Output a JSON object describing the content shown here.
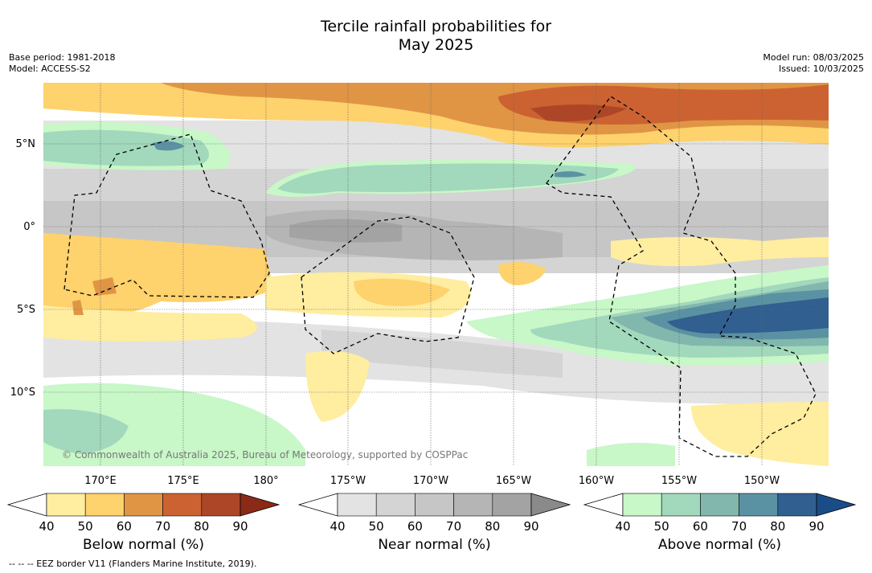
{
  "title": [
    "Tercile rainfall probabilities for",
    "May 2025"
  ],
  "meta_left": [
    "Base period: 1981-2018",
    "Model: ACCESS-S2"
  ],
  "meta_right": [
    "Model run: 08/03/2025",
    "Issued: 10/03/2025"
  ],
  "lat_labels": [
    "5°N",
    "0°",
    "5°S",
    "10°S"
  ],
  "lon_labels": [
    "170°E",
    "175°E",
    "180°",
    "175°W",
    "170°W",
    "165°W",
    "160°W",
    "155°W",
    "150°W"
  ],
  "copyright": "© Commonwealth of Australia 2025, Bureau of Meteorology, supported by COSPPac",
  "legends": [
    {
      "label": "Below normal (%)",
      "ticks": [
        "40",
        "50",
        "60",
        "70",
        "80",
        "90"
      ],
      "colors": [
        "#ffeda0",
        "#fed26c",
        "#e09545",
        "#cc6232",
        "#ad4627",
        "#8b2a17"
      ]
    },
    {
      "label": "Near normal (%)",
      "ticks": [
        "40",
        "50",
        "60",
        "70",
        "80",
        "90"
      ],
      "colors": [
        "#e3e3e3",
        "#d4d4d4",
        "#c6c6c6",
        "#b5b5b5",
        "#a3a3a3",
        "#8a8a8a"
      ]
    },
    {
      "label": "Above normal (%)",
      "ticks": [
        "40",
        "50",
        "60",
        "70",
        "80",
        "90"
      ],
      "colors": [
        "#c8f7c8",
        "#a2d8bc",
        "#82b7ae",
        "#5b92a3",
        "#315f90",
        "#1a4c88"
      ]
    }
  ],
  "footnote": "--  --  -- EEZ border V11 (Flanders Marine Institute, 2019)."
}
